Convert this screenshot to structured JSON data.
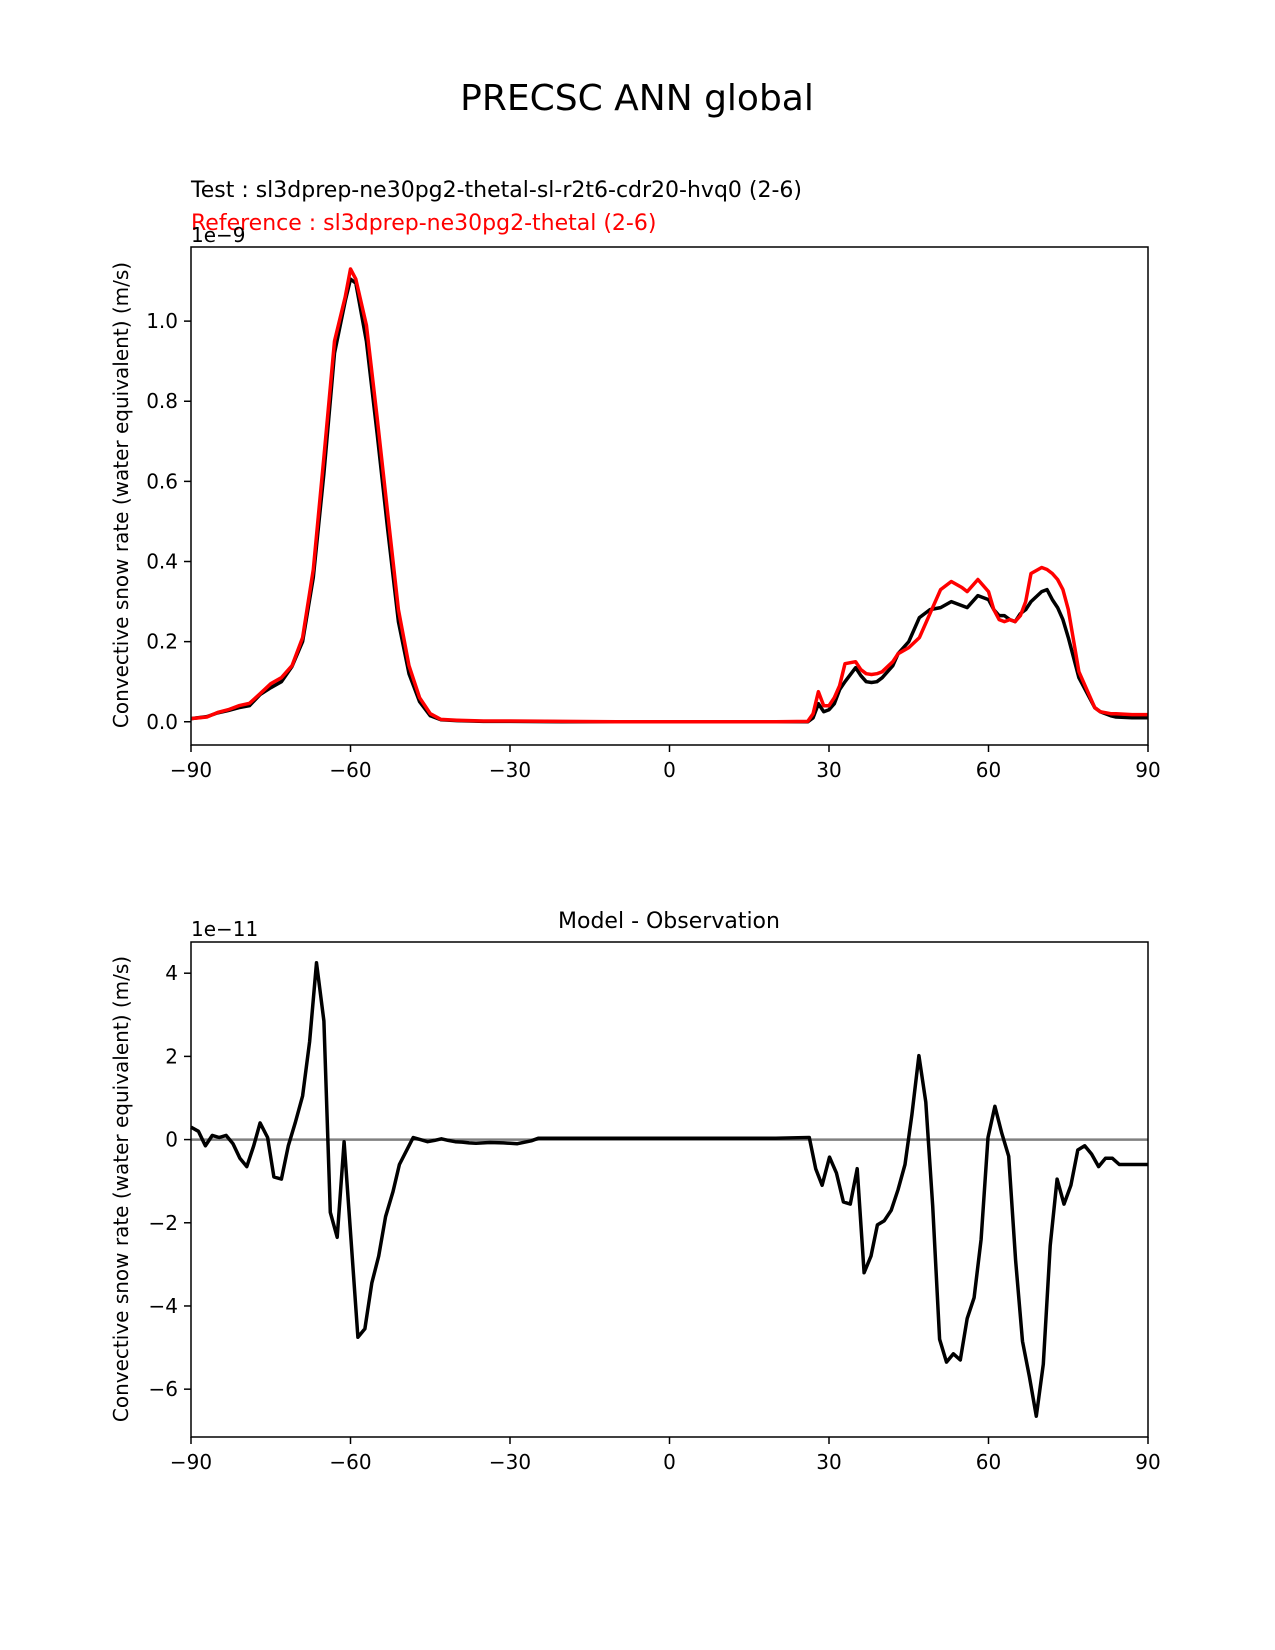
{
  "figure_title": "PRECSC ANN global",
  "chart_data": [
    {
      "type": "line",
      "legend_texts": {
        "test": "Test : sl3dprep-ne30pg2-thetal-sl-r2t6-cdr20-hvq0 (2-6)",
        "reference": "Reference : sl3dprep-ne30pg2-thetal (2-6)"
      },
      "title": "",
      "xlabel": "",
      "ylabel": "Convective snow rate (water equivalent) (m/s)",
      "y_offset_text": "1e−9",
      "xlim": [
        -90,
        90
      ],
      "ylim": [
        -0.058,
        1.185
      ],
      "xticks": [
        -90,
        -60,
        -30,
        0,
        30,
        60,
        90
      ],
      "xtick_labels": [
        "−90",
        "−60",
        "−30",
        "0",
        "30",
        "60",
        "90"
      ],
      "yticks": [
        0.0,
        0.2,
        0.4,
        0.6,
        0.8,
        1.0
      ],
      "ytick_labels": [
        "0.0",
        "0.2",
        "0.4",
        "0.6",
        "0.8",
        "1.0"
      ],
      "colors": {
        "test": "#000000",
        "reference": "#ff0000"
      },
      "series": [
        {
          "key": "test",
          "x": [
            -90,
            -87,
            -85,
            -83,
            -81,
            -79,
            -77,
            -75,
            -73,
            -71,
            -69,
            -67,
            -65,
            -63,
            -61,
            -60,
            -59,
            -57,
            -55,
            -53,
            -51,
            -49,
            -47,
            -45,
            -43,
            -40,
            -35,
            -30,
            -20,
            -10,
            0,
            10,
            20,
            26,
            27,
            28,
            29,
            30,
            31,
            32,
            33,
            35,
            36,
            37,
            38,
            39,
            40,
            42,
            43,
            45,
            47,
            49,
            51,
            53,
            55,
            56,
            58,
            60,
            61,
            62,
            63,
            64,
            65,
            66,
            67,
            68,
            70,
            71,
            72,
            73,
            74,
            75,
            77,
            79,
            80,
            81,
            83,
            84,
            87,
            90
          ],
          "values": [
            0.008,
            0.013,
            0.022,
            0.028,
            0.035,
            0.04,
            0.068,
            0.085,
            0.1,
            0.138,
            0.2,
            0.36,
            0.62,
            0.92,
            1.05,
            1.105,
            1.095,
            0.95,
            0.72,
            0.48,
            0.25,
            0.12,
            0.05,
            0.015,
            0.005,
            0.003,
            0.001,
            0.001,
            0.0,
            0.0,
            0.0,
            0.0,
            0.0,
            0.0,
            0.01,
            0.045,
            0.025,
            0.03,
            0.045,
            0.08,
            0.1,
            0.135,
            0.115,
            0.1,
            0.098,
            0.1,
            0.11,
            0.14,
            0.17,
            0.2,
            0.26,
            0.28,
            0.285,
            0.3,
            0.29,
            0.285,
            0.315,
            0.305,
            0.28,
            0.265,
            0.265,
            0.255,
            0.25,
            0.27,
            0.28,
            0.3,
            0.325,
            0.33,
            0.305,
            0.285,
            0.255,
            0.21,
            0.11,
            0.06,
            0.035,
            0.025,
            0.015,
            0.012,
            0.01,
            0.01
          ]
        },
        {
          "key": "reference",
          "x": [
            -90,
            -87,
            -85,
            -83,
            -81,
            -79,
            -77,
            -75,
            -73,
            -71,
            -69,
            -67,
            -65,
            -63,
            -61,
            -60,
            -59,
            -57,
            -55,
            -53,
            -51,
            -49,
            -47,
            -45,
            -43,
            -40,
            -35,
            -30,
            -20,
            -10,
            0,
            10,
            20,
            26,
            27,
            28,
            29,
            30,
            31,
            32,
            33,
            35,
            36,
            37,
            38,
            39,
            40,
            42,
            43,
            45,
            47,
            49,
            51,
            53,
            55,
            56,
            58,
            60,
            61,
            62,
            63,
            64,
            65,
            66,
            67,
            68,
            70,
            71,
            72,
            73,
            74,
            75,
            77,
            79,
            80,
            81,
            83,
            84,
            87,
            90
          ],
          "values": [
            0.008,
            0.012,
            0.023,
            0.03,
            0.04,
            0.046,
            0.07,
            0.095,
            0.11,
            0.14,
            0.21,
            0.38,
            0.66,
            0.95,
            1.06,
            1.13,
            1.105,
            0.99,
            0.76,
            0.52,
            0.28,
            0.14,
            0.06,
            0.02,
            0.006,
            0.004,
            0.002,
            0.002,
            0.001,
            0.0,
            0.0,
            0.0,
            0.0,
            0.001,
            0.02,
            0.075,
            0.04,
            0.04,
            0.06,
            0.09,
            0.145,
            0.15,
            0.13,
            0.12,
            0.118,
            0.12,
            0.125,
            0.15,
            0.17,
            0.185,
            0.21,
            0.27,
            0.33,
            0.35,
            0.335,
            0.325,
            0.355,
            0.325,
            0.28,
            0.255,
            0.25,
            0.255,
            0.25,
            0.265,
            0.3,
            0.37,
            0.385,
            0.38,
            0.37,
            0.355,
            0.33,
            0.28,
            0.125,
            0.065,
            0.035,
            0.025,
            0.02,
            0.02,
            0.018,
            0.018
          ]
        }
      ]
    },
    {
      "type": "line",
      "title": "Model - Observation",
      "xlabel": "",
      "ylabel": "Convective snow rate (water equivalent) (m/s)",
      "y_offset_text": "1e−11",
      "xlim": [
        -90,
        90
      ],
      "ylim": [
        -7.15,
        4.75
      ],
      "xticks": [
        -90,
        -60,
        -30,
        0,
        30,
        60,
        90
      ],
      "xtick_labels": [
        "−90",
        "−60",
        "−30",
        "0",
        "30",
        "60",
        "90"
      ],
      "yticks": [
        -6,
        -4,
        -2,
        0,
        2,
        4
      ],
      "ytick_labels": [
        "−6",
        "−4",
        "−2",
        "0",
        "2",
        "4"
      ],
      "zero_line": true,
      "colors": {
        "diff": "#000000",
        "zero_line": "#808080"
      },
      "series": [
        {
          "key": "diff",
          "x": [
            -90,
            -88.6,
            -87.3,
            -86,
            -84.7,
            -83.4,
            -82.1,
            -80.8,
            -79.5,
            -78.2,
            -77,
            -75.6,
            -74.4,
            -73,
            -71.7,
            -70.4,
            -69,
            -67.7,
            -66.4,
            -65,
            -63.8,
            -62.5,
            -61.2,
            -59.9,
            -58.6,
            -57.3,
            -56,
            -54.7,
            -53.4,
            -52,
            -50.8,
            -48.2,
            -45.5,
            -44.2,
            -42.9,
            -41.6,
            -40.3,
            -39,
            -37.7,
            -36.4,
            -33.8,
            -31.2,
            -28.6,
            -26,
            -24.7,
            -20,
            -10,
            0,
            10,
            20,
            26.3,
            27.5,
            28.7,
            30.1,
            31.4,
            32.7,
            34,
            35.3,
            36.6,
            37.9,
            39.1,
            40.4,
            41.7,
            43,
            44.3,
            45.6,
            46.9,
            48.2,
            49.5,
            50.8,
            52.1,
            53.4,
            54.7,
            56,
            57.3,
            58.6,
            59.9,
            61.2,
            62.5,
            63.8,
            65.1,
            66.4,
            67.7,
            69,
            70.3,
            71.6,
            72.9,
            74.2,
            75.5,
            76.8,
            78.1,
            79.4,
            80.7,
            82,
            83.3,
            84.6,
            85.9,
            87.2,
            88.5,
            90
          ],
          "values": [
            0.3,
            0.2,
            -0.15,
            0.1,
            0.05,
            0.1,
            -0.1,
            -0.45,
            -0.65,
            -0.15,
            0.4,
            0.05,
            -0.9,
            -0.95,
            -0.15,
            0.4,
            1.05,
            2.35,
            4.25,
            2.85,
            -1.75,
            -2.35,
            -0.05,
            -2.4,
            -4.75,
            -4.55,
            -3.45,
            -2.8,
            -1.85,
            -1.25,
            -0.6,
            0.05,
            -0.05,
            -0.02,
            0.02,
            -0.02,
            -0.05,
            -0.06,
            -0.08,
            -0.09,
            -0.07,
            -0.08,
            -0.1,
            -0.03,
            0.03,
            0.03,
            0.03,
            0.03,
            0.03,
            0.03,
            0.05,
            -0.7,
            -1.1,
            -0.42,
            -0.8,
            -1.5,
            -1.55,
            -0.7,
            -3.2,
            -2.8,
            -2.05,
            -1.95,
            -1.7,
            -1.2,
            -0.6,
            0.6,
            2.02,
            0.9,
            -1.6,
            -4.8,
            -5.35,
            -5.15,
            -5.3,
            -4.3,
            -3.8,
            -2.4,
            0.05,
            0.8,
            0.15,
            -0.4,
            -2.9,
            -4.85,
            -5.7,
            -6.65,
            -5.4,
            -2.55,
            -0.95,
            -1.55,
            -1.1,
            -0.25,
            -0.15,
            -0.35,
            -0.65,
            -0.45,
            -0.45,
            -0.6,
            -0.6,
            -0.6,
            -0.6,
            -0.6
          ]
        }
      ]
    }
  ]
}
